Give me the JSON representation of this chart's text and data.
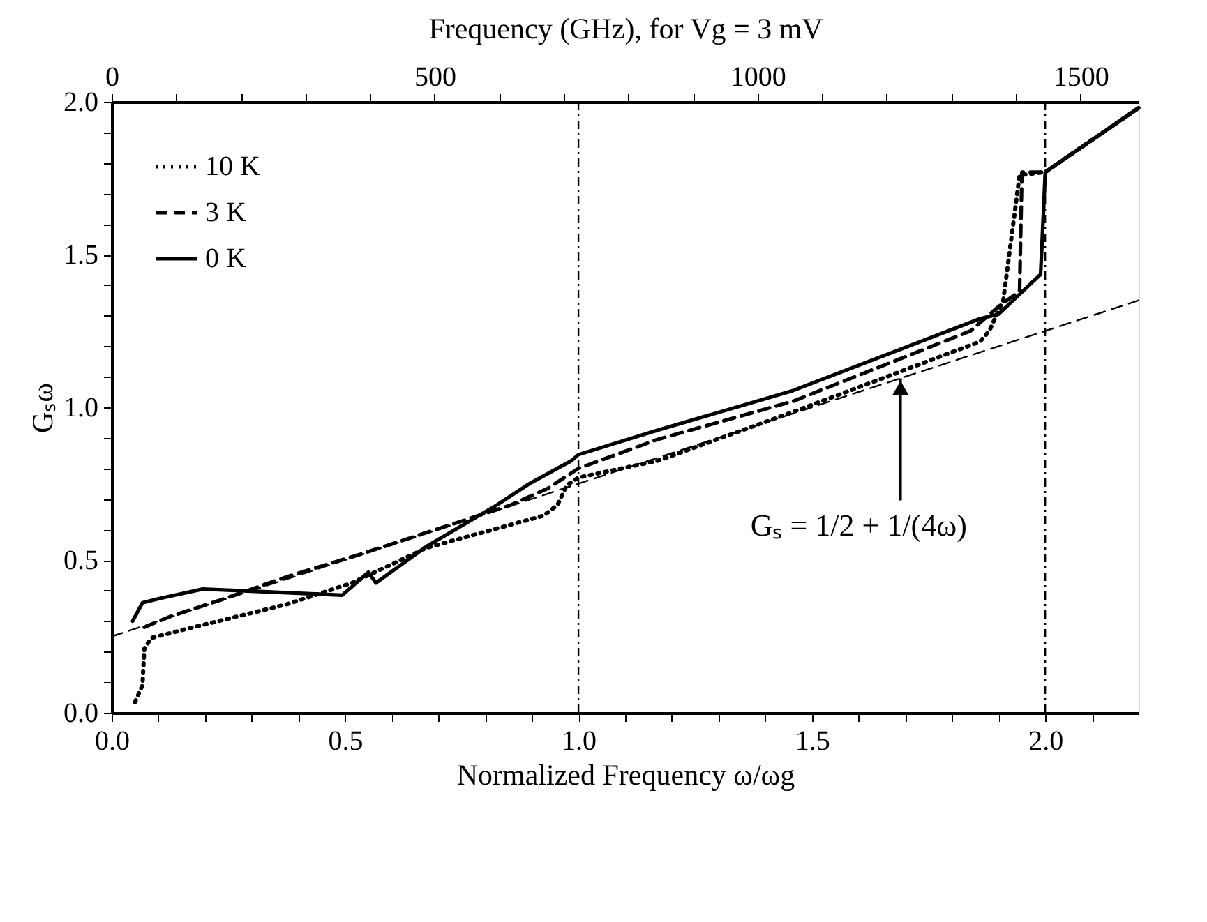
{
  "chart_data": {
    "type": "line",
    "xlabel": "Normalized Frequency ω/ωg",
    "ylabel": "Gₛω",
    "x2label": "Frequency (GHz), for Vg = 3 mV",
    "xlim": [
      0,
      2.2
    ],
    "ylim": [
      0,
      2.0
    ],
    "x2lim": [
      0,
      1590
    ],
    "xticks": [
      {
        "value": 0,
        "label": "0.0"
      },
      {
        "value": 0.1,
        "label": null
      },
      {
        "value": 0.2,
        "label": null
      },
      {
        "value": 0.3,
        "label": null
      },
      {
        "value": 0.4,
        "label": null
      },
      {
        "value": 0.5,
        "label": "0.5"
      },
      {
        "value": 0.6,
        "label": null
      },
      {
        "value": 0.7,
        "label": null
      },
      {
        "value": 0.8,
        "label": null
      },
      {
        "value": 0.9,
        "label": null
      },
      {
        "value": 1.0,
        "label": "1.0"
      },
      {
        "value": 1.1,
        "label": null
      },
      {
        "value": 1.2,
        "label": null
      },
      {
        "value": 1.3,
        "label": null
      },
      {
        "value": 1.4,
        "label": null
      },
      {
        "value": 1.5,
        "label": "1.5"
      },
      {
        "value": 1.6,
        "label": null
      },
      {
        "value": 1.7,
        "label": null
      },
      {
        "value": 1.8,
        "label": null
      },
      {
        "value": 1.9,
        "label": null
      },
      {
        "value": 2.0,
        "label": "2.0"
      },
      {
        "value": 2.1,
        "label": null
      }
    ],
    "yticks": [
      {
        "value": 0,
        "label": "0.0"
      },
      {
        "value": 0.1,
        "label": null
      },
      {
        "value": 0.2,
        "label": null
      },
      {
        "value": 0.3,
        "label": null
      },
      {
        "value": 0.4,
        "label": null
      },
      {
        "value": 0.5,
        "label": "0.5"
      },
      {
        "value": 0.6,
        "label": null
      },
      {
        "value": 0.7,
        "label": null
      },
      {
        "value": 0.8,
        "label": null
      },
      {
        "value": 0.9,
        "label": null
      },
      {
        "value": 1.0,
        "label": "1.0"
      },
      {
        "value": 1.1,
        "label": null
      },
      {
        "value": 1.2,
        "label": null
      },
      {
        "value": 1.3,
        "label": null
      },
      {
        "value": 1.4,
        "label": null
      },
      {
        "value": 1.5,
        "label": "1.5"
      },
      {
        "value": 1.6,
        "label": null
      },
      {
        "value": 1.7,
        "label": null
      },
      {
        "value": 1.8,
        "label": null
      },
      {
        "value": 1.9,
        "label": null
      },
      {
        "value": 2.0,
        "label": "2.0"
      }
    ],
    "x2ticks": [
      0,
      {
        "value": 100,
        "label": null
      },
      {
        "value": 200,
        "label": null
      },
      {
        "value": 300,
        "label": null
      },
      {
        "value": 400,
        "label": null
      },
      500,
      {
        "value": 600,
        "label": null
      },
      {
        "value": 700,
        "label": null
      },
      {
        "value": 800,
        "label": null
      },
      {
        "value": 900,
        "label": null
      },
      1000,
      {
        "value": 1100,
        "label": null
      },
      {
        "value": 1200,
        "label": null
      },
      {
        "value": 1300,
        "label": null
      },
      {
        "value": 1400,
        "label": null
      },
      1500
    ],
    "grid": false,
    "legend": "top left",
    "marker": "none",
    "series": [
      {
        "name": "10 K",
        "color": "#000000",
        "line_style": "dotted",
        "x": [
          0.05,
          0.066,
          0.07,
          0.085,
          0.175,
          0.375,
          0.515,
          0.675,
          0.925,
          0.955,
          0.975,
          1.0,
          1.17,
          1.46,
          1.86,
          1.88,
          1.91,
          1.945,
          2.0,
          2.2
        ],
        "values": [
          0.035,
          0.09,
          0.21,
          0.245,
          0.28,
          0.355,
          0.425,
          0.54,
          0.645,
          0.68,
          0.745,
          0.77,
          0.825,
          0.985,
          1.215,
          1.25,
          1.35,
          1.76,
          1.77,
          1.98
        ]
      },
      {
        "name": "3 K",
        "color": "#000000",
        "line_style": "dashed",
        "x": [
          0.07,
          0.125,
          0.235,
          0.375,
          0.535,
          0.735,
          0.855,
          0.935,
          1.0,
          1.17,
          1.46,
          1.84,
          1.9,
          1.945,
          1.95,
          2.0,
          2.2
        ],
        "values": [
          0.28,
          0.315,
          0.37,
          0.445,
          0.52,
          0.62,
          0.68,
          0.735,
          0.8,
          0.895,
          1.02,
          1.25,
          1.33,
          1.38,
          1.77,
          1.77,
          1.98
        ]
      },
      {
        "name": "0 K",
        "color": "#000000",
        "line_style": "solid",
        "x": [
          0.045,
          0.066,
          0.105,
          0.195,
          0.275,
          0.494,
          0.55,
          0.566,
          0.675,
          0.82,
          0.895,
          0.985,
          1.0,
          1.17,
          1.46,
          1.86,
          1.9,
          1.99,
          2.0,
          2.2
        ],
        "values": [
          0.3,
          0.36,
          0.375,
          0.405,
          0.4,
          0.385,
          0.46,
          0.425,
          0.545,
          0.675,
          0.75,
          0.825,
          0.845,
          0.925,
          1.055,
          1.29,
          1.305,
          1.435,
          1.77,
          1.98
        ]
      },
      {
        "type": "line",
        "color": "#000000",
        "line_style": "dashed",
        "x": [
          0,
          2.2
        ],
        "values": [
          0.25,
          1.35
        ]
      }
    ],
    "ref_lines": [
      {
        "axis": "x",
        "value": 1.0,
        "line_style": "dashdot",
        "color": "#000000"
      },
      {
        "axis": "x",
        "value": 2.0,
        "line_style": "dashdot",
        "color": "#000000"
      }
    ],
    "annotations": [
      {
        "text": "Gₛ = 1/2 + 1/(4ω)",
        "x": 1.69,
        "y": 1.095
      }
    ]
  }
}
